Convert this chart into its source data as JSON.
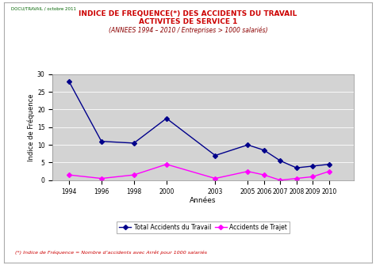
{
  "title_line1": "INDICE DE FREQUENCE(*) DES ACCIDENTS DU TRAVAIL",
  "title_line2": "ACTIVITES DE SERVICE 1",
  "title_line3": "(ANNEES 1994 – 2010 / Entreprises > 1000 salariés)",
  "xlabel": "Années",
  "ylabel": "Indice de Fréquence",
  "watermark": "DOCU/TRAVAIL / octobre 2011",
  "footnote": "(*) Indice de Fréquence = Nombre d’accidents avec Arrêt pour 1000 salariés",
  "years": [
    1994,
    1996,
    1998,
    2000,
    2003,
    2005,
    2006,
    2007,
    2008,
    2009,
    2010
  ],
  "total_accidents": [
    28,
    11,
    10.5,
    17.5,
    7,
    10,
    8.5,
    5.5,
    3.5,
    4,
    4.5
  ],
  "accidents_trajet": [
    1.5,
    0.5,
    1.5,
    4.5,
    0.5,
    2.5,
    1.5,
    0,
    0.5,
    1,
    2.5
  ],
  "ylim": [
    0,
    30
  ],
  "yticks": [
    0,
    5,
    10,
    15,
    20,
    25,
    30
  ],
  "color_total": "#00008B",
  "color_trajet": "#FF00FF",
  "legend_label_total": "Total Accidents du Travail",
  "legend_label_trajet": "Accidents de Trajet",
  "plot_bg_color": "#D3D3D3",
  "title_color": "#CC0000",
  "title3_color": "#8B0000",
  "footnote_color": "#CC0000",
  "watermark_color": "#006400"
}
